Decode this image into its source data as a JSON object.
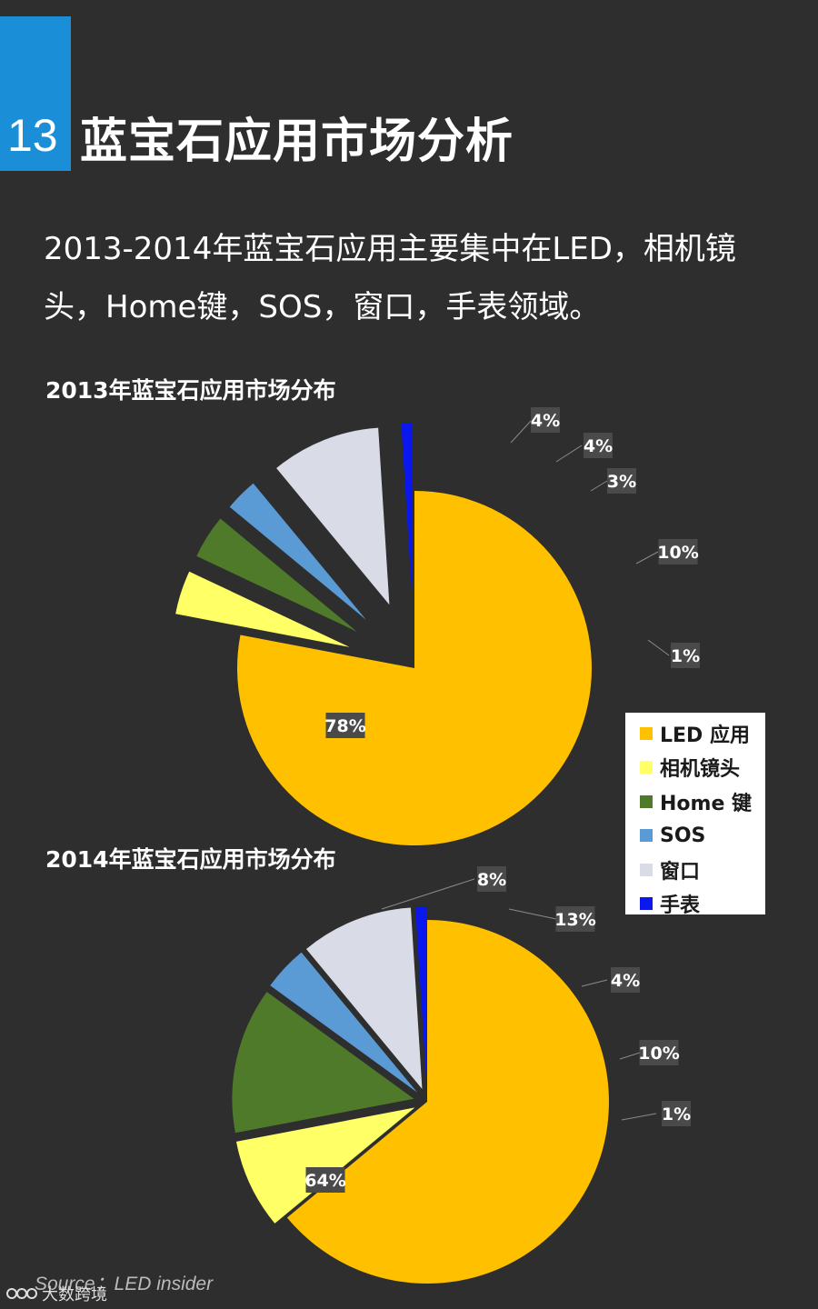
{
  "header": {
    "number": "13",
    "title": "蓝宝石应用市场分析",
    "subtitle": "2013-2014年蓝宝石应用主要集中在LED，相机镜头，Home键，SOS，窗口，手表领域。"
  },
  "colors": {
    "background": "#2e2e2e",
    "accent": "#1a8fd8",
    "label_bg": "#4a4a4a"
  },
  "chart_data": [
    {
      "type": "pie",
      "title": "2013年蓝宝石应用市场分布",
      "categories": [
        "LED 应用",
        "相机镜头",
        "Home 键",
        "SOS",
        "窗口",
        "手表"
      ],
      "values": [
        78,
        4,
        4,
        3,
        10,
        1
      ],
      "labels": [
        "78%",
        "4%",
        "4%",
        "3%",
        "10%",
        "1%"
      ],
      "colors": [
        "#ffc000",
        "#ffff66",
        "#4e7a2a",
        "#5b9bd5",
        "#d9dce6",
        "#0a18ee"
      ],
      "exploded": true,
      "legend": "right"
    },
    {
      "type": "pie",
      "title": "2014年蓝宝石应用市场分布",
      "categories": [
        "LED 应用",
        "相机镜头",
        "Home 键",
        "SOS",
        "窗口",
        "手表"
      ],
      "values": [
        64,
        8,
        13,
        4,
        10,
        1
      ],
      "labels": [
        "64%",
        "8%",
        "13%",
        "4%",
        "10%",
        "1%"
      ],
      "colors": [
        "#ffc000",
        "#ffff66",
        "#4e7a2a",
        "#5b9bd5",
        "#d9dce6",
        "#0a18ee"
      ],
      "exploded": true,
      "legend": "right"
    }
  ],
  "legend": {
    "items": [
      {
        "label": "LED 应用",
        "color": "#ffc000"
      },
      {
        "label": "相机镜头",
        "color": "#ffff66"
      },
      {
        "label": "Home 键",
        "color": "#4e7a2a"
      },
      {
        "label": "SOS",
        "color": "#5b9bd5"
      },
      {
        "label": "窗口",
        "color": "#d9dce6"
      },
      {
        "label": "手表",
        "color": "#0a18ee"
      }
    ]
  },
  "footer": {
    "source": "Source：LED insider",
    "brand": "大数跨境"
  }
}
